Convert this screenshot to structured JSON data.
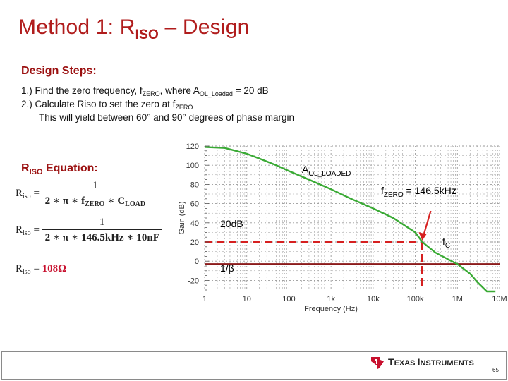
{
  "slide": {
    "title_main": "Method 1: R",
    "title_sub": "ISO",
    "title_rest": " – Design"
  },
  "design_steps": {
    "heading": "Design Steps:",
    "step1_a": "1.)  Find the zero frequency, f",
    "step1_sub1": "ZERO",
    "step1_b": ", where A",
    "step1_sub2": "OL_Loaded",
    "step1_c": " = 20 dB",
    "step2_a": "2.)  Calculate Riso to set the zero at f",
    "step2_sub": "ZERO",
    "step3": "This will yield between 60° and 90° degrees of phase margin"
  },
  "equation_section": {
    "heading_main": "R",
    "heading_sub": "ISO",
    "heading_rest": " Equation:",
    "eq1_lhs": "R",
    "eq1_lhs_sub": "iso",
    "eq1_num": "1",
    "eq1_den_a": "2 ∗ π ∗ f",
    "eq1_den_sub1": "ZERO",
    "eq1_den_b": " ∗ C",
    "eq1_den_sub2": "LOAD",
    "eq2_lhs": "R",
    "eq2_lhs_sub": "iso",
    "eq2_num": "1",
    "eq2_den": "2 ∗ π ∗ 146.5kHz ∗ 10nF",
    "eq3_lhs": "R",
    "eq3_lhs_sub": "iso",
    "eq3_value": "108Ω",
    "equals": "="
  },
  "chart_data": {
    "type": "line",
    "xlabel": "Frequency (Hz)",
    "ylabel": "Gain (dB)",
    "xscale": "log",
    "xlim": [
      1,
      10000000
    ],
    "ylim": [
      -30,
      120
    ],
    "x_tick_labels": [
      "1",
      "10",
      "100",
      "1k",
      "10k",
      "100k",
      "1M",
      "10M"
    ],
    "y_tick_labels": [
      "120",
      "100",
      "80",
      "60",
      "40",
      "20",
      "0",
      "-20"
    ],
    "grid": true,
    "series": [
      {
        "name": "A_OL_LOADED",
        "color": "#3aaa35",
        "x": [
          1,
          3,
          10,
          20,
          50,
          100,
          300,
          1000,
          3000,
          10000,
          30000,
          100000,
          146500,
          300000,
          600000,
          1000000,
          2000000,
          3000000,
          5000000,
          8000000
        ],
        "y": [
          119,
          118,
          112,
          107,
          100,
          94,
          85,
          75,
          65,
          55,
          45,
          30,
          20,
          9,
          2,
          -3,
          -13,
          -22,
          -32,
          -42
        ]
      },
      {
        "name": "1/β",
        "color": "#8b1a1a",
        "x": [
          1,
          10000000
        ],
        "y": [
          -3,
          -3
        ]
      }
    ],
    "reference_lines": {
      "horizontal_db": 20,
      "vertical_hz": 146500,
      "color": "#d62020"
    },
    "annotations": {
      "aol_main": "A",
      "aol_sub": "OL_LOADED",
      "fzero_main": "f",
      "fzero_sub": "ZERO",
      "fzero_rest": " = 146.5kHz",
      "db20": "20dB",
      "fc_main": "f",
      "fc_sub": "C",
      "beta": "1/β"
    }
  },
  "footer": {
    "brand_a": "T",
    "brand_b": "EXAS ",
    "brand_c": "I",
    "brand_d": "NSTRUMENTS",
    "logo_color": "#c8102e",
    "page_number": "65"
  }
}
